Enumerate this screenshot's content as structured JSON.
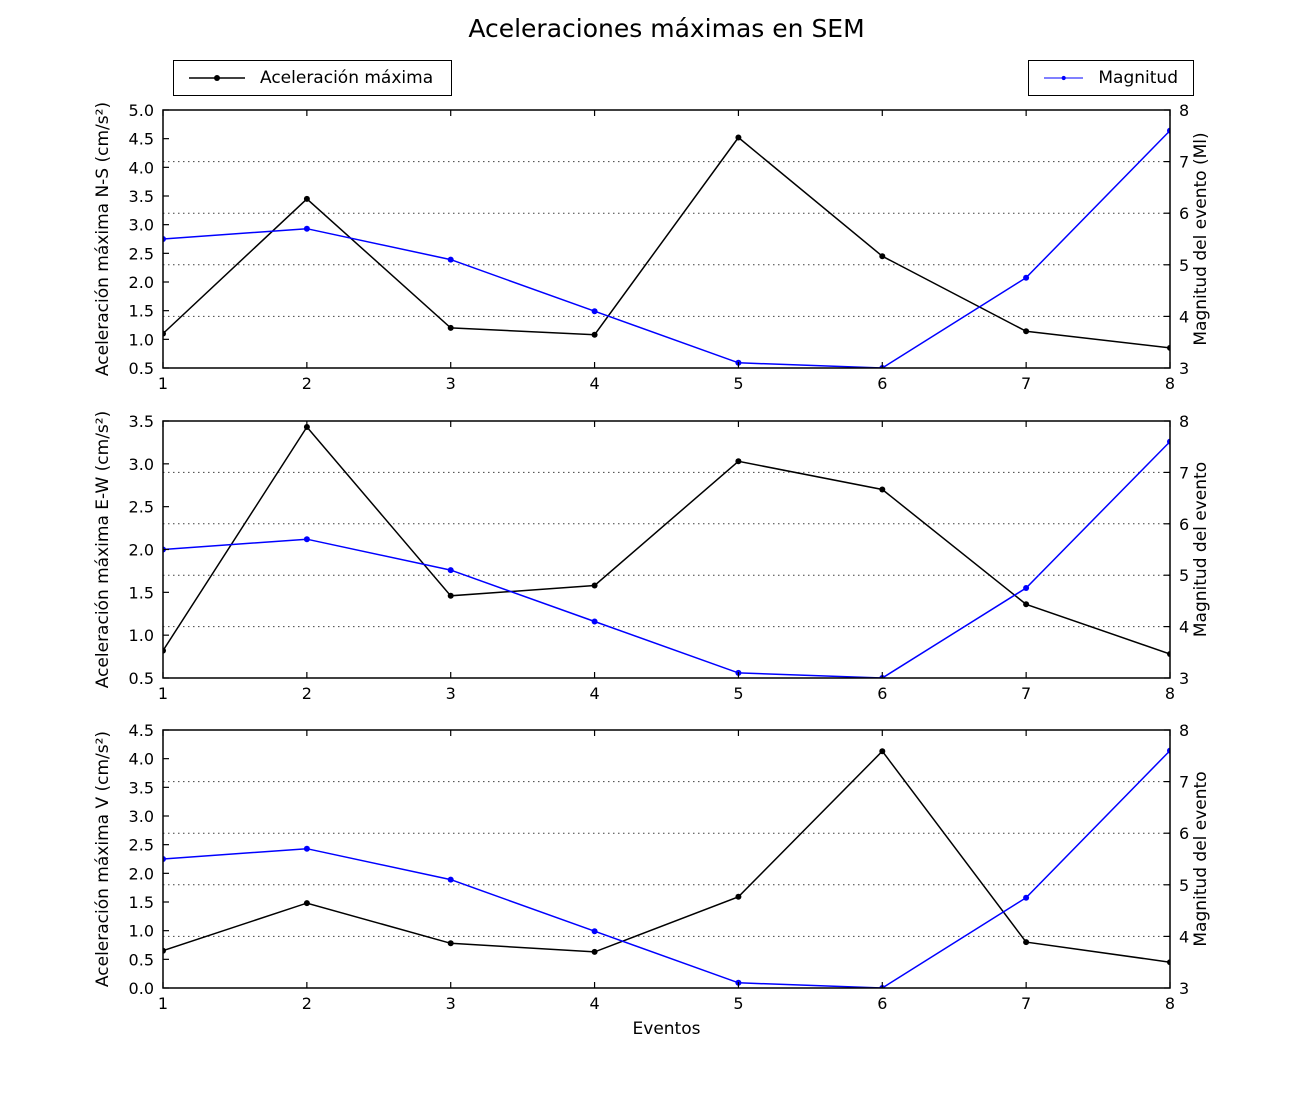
{
  "title": "Aceleraciones máximas en SEM",
  "xlabel": "Eventos",
  "legend": {
    "acceleration": {
      "label": "Aceleración máxima",
      "color": "#000000"
    },
    "magnitude": {
      "label": "Magnitud",
      "color": "#0000ff"
    }
  },
  "chart_data": [
    {
      "type": "line",
      "x": [
        1,
        2,
        3,
        4,
        5,
        6,
        7,
        8
      ],
      "xlabel": "",
      "ylabel_left": "Aceleración máxima N-S (cm/s²)",
      "ylabel_right": "Magnitud del evento (Ml)",
      "ylim_left": [
        0.5,
        5.0
      ],
      "yticks_left_step": 0.5,
      "ylim_right": [
        3,
        8
      ],
      "grid": "horizontal dotted lines at right-axis ticks 4,5,6,7",
      "series": [
        {
          "name": "Aceleración máxima",
          "axis": "left",
          "color": "#000000",
          "marker": "point",
          "values": [
            1.1,
            3.45,
            1.2,
            1.08,
            4.52,
            2.45,
            1.14,
            0.85
          ]
        },
        {
          "name": "Magnitud",
          "axis": "right",
          "color": "#0000ff",
          "marker": "point",
          "values": [
            5.5,
            5.7,
            5.1,
            4.1,
            3.1,
            3.0,
            4.75,
            7.6
          ]
        }
      ]
    },
    {
      "type": "line",
      "x": [
        1,
        2,
        3,
        4,
        5,
        6,
        7,
        8
      ],
      "xlabel": "",
      "ylabel_left": "Aceleración máxima E-W (cm/s²)",
      "ylabel_right": "Magnitud del evento",
      "ylim_left": [
        0.5,
        3.5
      ],
      "yticks_left_step": 0.5,
      "ylim_right": [
        3,
        8
      ],
      "grid": "horizontal dotted lines at right-axis ticks 4,5,6,7",
      "series": [
        {
          "name": "Aceleración máxima",
          "axis": "left",
          "color": "#000000",
          "marker": "point",
          "values": [
            0.82,
            3.43,
            1.46,
            1.58,
            3.03,
            2.7,
            1.36,
            0.78
          ]
        },
        {
          "name": "Magnitud",
          "axis": "right",
          "color": "#0000ff",
          "marker": "point",
          "values": [
            5.5,
            5.7,
            5.1,
            4.1,
            3.1,
            3.0,
            4.75,
            7.6
          ]
        }
      ]
    },
    {
      "type": "line",
      "x": [
        1,
        2,
        3,
        4,
        5,
        6,
        7,
        8
      ],
      "xlabel": "Eventos",
      "ylabel_left": "Aceleración máxima V (cm/s²)",
      "ylabel_right": "Magnitud del evento",
      "ylim_left": [
        0.0,
        4.5
      ],
      "yticks_left_step": 0.5,
      "ylim_right": [
        3,
        8
      ],
      "grid": "horizontal dotted lines at right-axis ticks 4,5,6,7",
      "series": [
        {
          "name": "Aceleración máxima",
          "axis": "left",
          "color": "#000000",
          "marker": "point",
          "values": [
            0.65,
            1.48,
            0.78,
            0.63,
            1.59,
            4.13,
            0.8,
            0.45
          ]
        },
        {
          "name": "Magnitud",
          "axis": "right",
          "color": "#0000ff",
          "marker": "point",
          "values": [
            5.5,
            5.7,
            5.1,
            4.1,
            3.1,
            3.0,
            4.75,
            7.6
          ]
        }
      ]
    }
  ]
}
